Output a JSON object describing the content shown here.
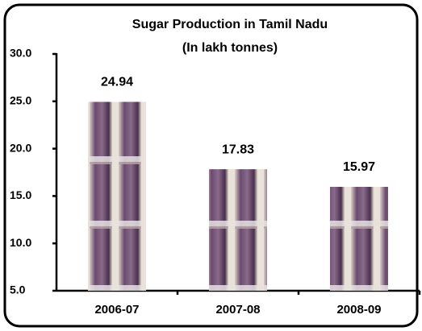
{
  "chart_data": {
    "type": "bar",
    "title": "Sugar Production in Tamil Nadu",
    "subtitle": "(In lakh tonnes)",
    "categories": [
      "2006-07",
      "2007-08",
      "2008-09"
    ],
    "values": [
      24.94,
      17.83,
      15.97
    ],
    "ylim": [
      5,
      30
    ],
    "yticks": [
      {
        "value": 5,
        "label": "5.0"
      },
      {
        "value": 10,
        "label": "10.0"
      },
      {
        "value": 15,
        "label": "15.0"
      },
      {
        "value": 20,
        "label": "20.0"
      },
      {
        "value": 25,
        "label": "25.0"
      },
      {
        "value": 30,
        "label": "30.0"
      }
    ],
    "grid": false
  }
}
